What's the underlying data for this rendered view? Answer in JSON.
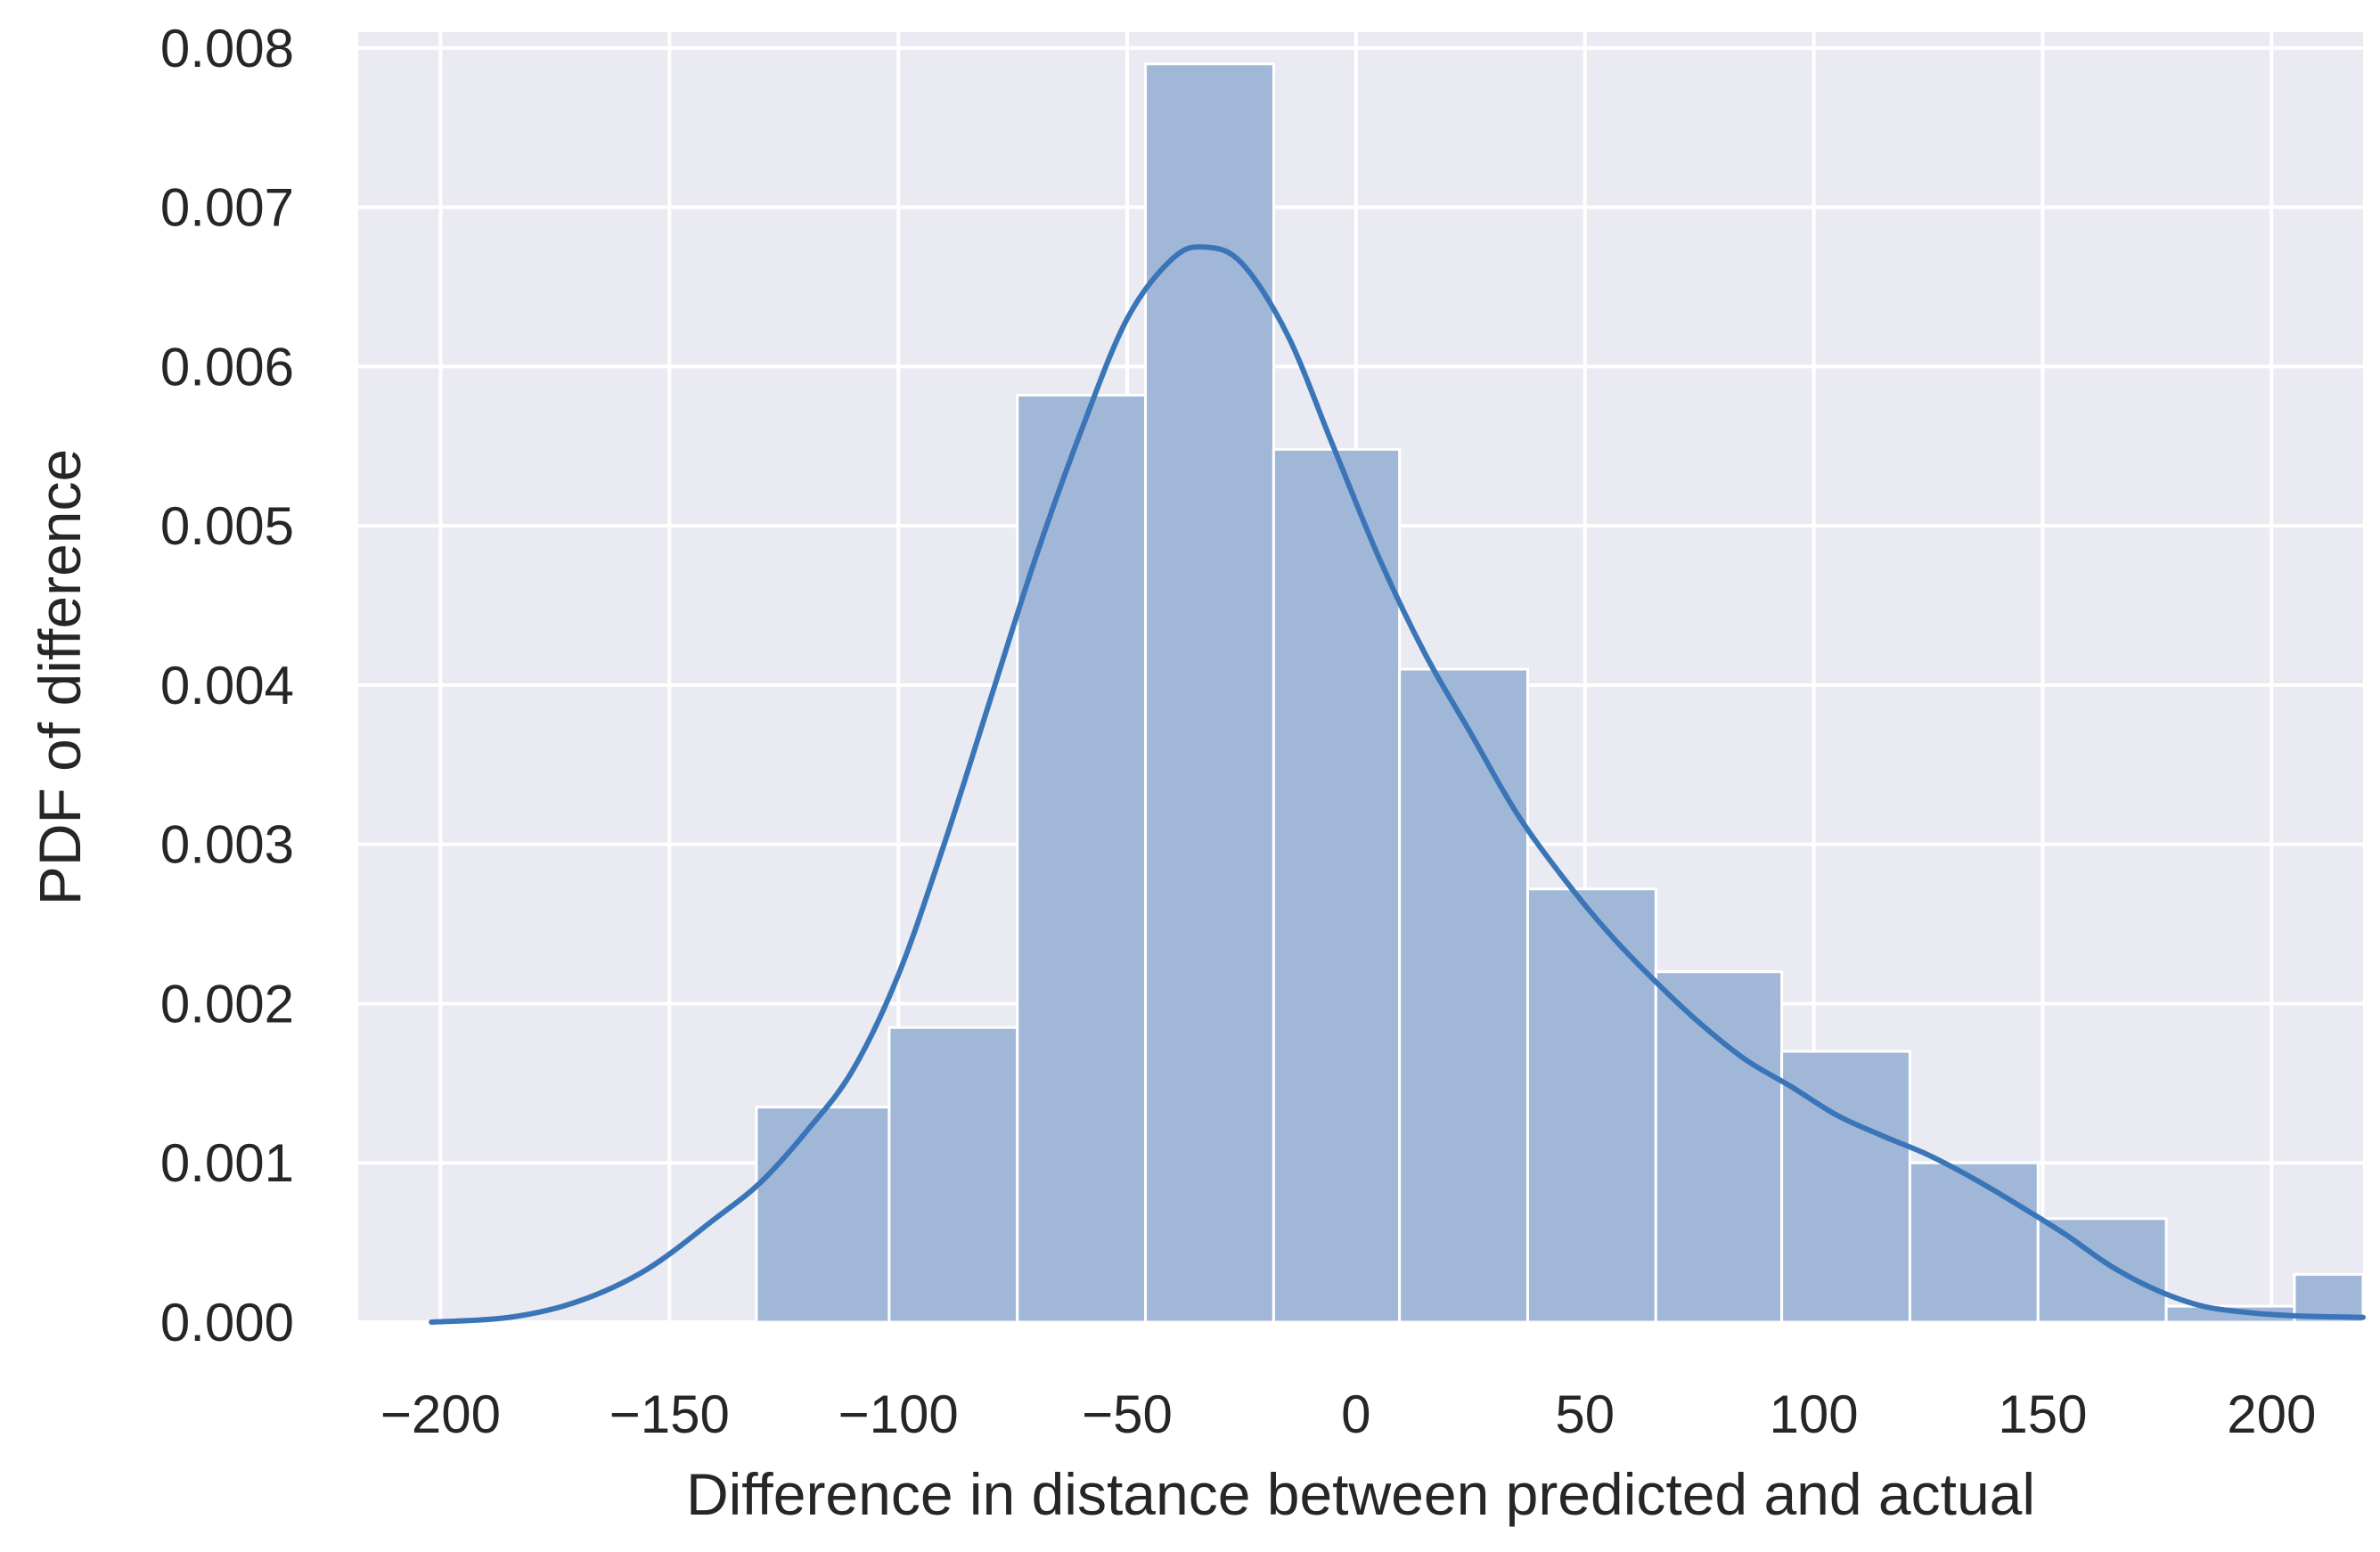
{
  "chart_data": {
    "type": "bar",
    "title": "",
    "xlabel": "Difference in distance between predicted and actual",
    "ylabel": "PDF of difference",
    "xlim": [
      -218,
      220
    ],
    "ylim": [
      0,
      0.0081
    ],
    "grid": true,
    "x_ticks": [
      -200,
      -150,
      -100,
      -50,
      0,
      50,
      100,
      150,
      200
    ],
    "x_tick_labels": [
      "−200",
      "−150",
      "−100",
      "−50",
      "0",
      "50",
      "100",
      "150",
      "200"
    ],
    "y_ticks": [
      0,
      0.001,
      0.002,
      0.003,
      0.004,
      0.005,
      0.006,
      0.007,
      0.008
    ],
    "y_tick_labels": [
      "0.000",
      "0.001",
      "0.002",
      "0.003",
      "0.004",
      "0.005",
      "0.006",
      "0.007",
      "0.008"
    ],
    "histogram": {
      "bin_edges": [
        -131,
        -102,
        -74,
        -46,
        -18,
        9.5,
        37.5,
        65.5,
        93,
        121,
        149,
        177,
        205,
        233
      ],
      "values": [
        0.00135,
        0.00185,
        0.00582,
        0.0079,
        0.00548,
        0.0041,
        0.00272,
        0.0022,
        0.0017,
        0.001,
        0.00065,
        0.0001,
        0.0003
      ]
    },
    "series": [
      {
        "type": "line",
        "x": [
          -202,
          -185,
          -170,
          -155,
          -140,
          -130,
          -120,
          -110,
          -100,
          -90,
          -80,
          -70,
          -60,
          -50,
          -40,
          -33,
          -25,
          -15,
          -5,
          5,
          15,
          25,
          35,
          45,
          55,
          65,
          75,
          85,
          95,
          105,
          115,
          125,
          135,
          145,
          155,
          165,
          175,
          185,
          195,
          205,
          220
        ],
        "y": [
          0.0,
          3e-05,
          0.00013,
          0.00033,
          0.00065,
          0.00088,
          0.0012,
          0.00158,
          0.00218,
          0.003,
          0.0039,
          0.0048,
          0.0056,
          0.0063,
          0.00668,
          0.00675,
          0.00665,
          0.0062,
          0.0055,
          0.0048,
          0.0042,
          0.0037,
          0.0032,
          0.0028,
          0.00245,
          0.00215,
          0.00188,
          0.00165,
          0.00148,
          0.0013,
          0.00117,
          0.00105,
          0.0009,
          0.00073,
          0.00055,
          0.00035,
          0.0002,
          0.0001,
          6e-05,
          4e-05,
          3e-05
        ]
      }
    ],
    "colors": {
      "plot_background": "#eaeaf2",
      "grid": "#ffffff",
      "bar_fill": "#a1b7d8",
      "bar_edge": "#ffffff",
      "kde_line": "#3a75b8"
    }
  }
}
